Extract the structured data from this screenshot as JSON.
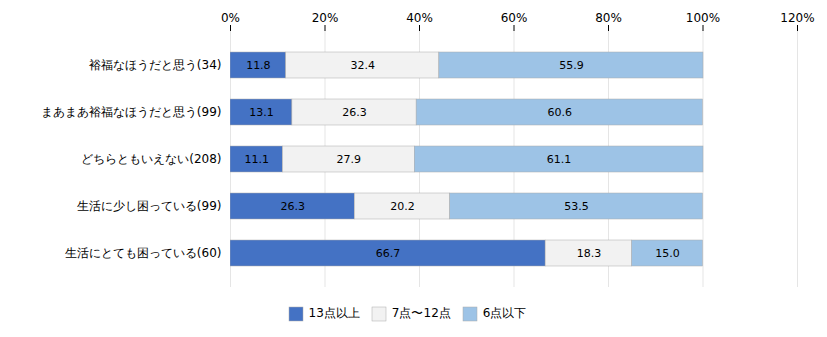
{
  "chart_data": {
    "type": "bar",
    "orientation": "horizontal",
    "stacked": true,
    "categories": [
      "裕福なほうだと思う(34)",
      "まあまあ裕福なほうだと思う(99)",
      "どちらともいえない(208)",
      "生活に少し困っている(99)",
      "生活にとても困っている(60)"
    ],
    "series": [
      {
        "name": "13点以上",
        "color": "#4472C4",
        "values": [
          11.8,
          13.1,
          11.1,
          26.3,
          66.7
        ]
      },
      {
        "name": "7点〜12点",
        "color": "#f2f2f2",
        "values": [
          32.4,
          26.3,
          27.9,
          20.2,
          18.3
        ]
      },
      {
        "name": "6点以下",
        "color": "#9DC3E6",
        "values": [
          55.9,
          60.6,
          61.1,
          53.5,
          15.0
        ],
        "value_labels": [
          "55.9",
          "60.6",
          "61.1",
          "53.5",
          "15.0"
        ]
      }
    ],
    "xlim": [
      0,
      120
    ],
    "xticks": [
      {
        "value": 0,
        "label": "0%"
      },
      {
        "value": 20,
        "label": "20%"
      },
      {
        "value": 40,
        "label": "40%"
      },
      {
        "value": 60,
        "label": "60%"
      },
      {
        "value": 80,
        "label": "80%"
      },
      {
        "value": 100,
        "label": "100%"
      },
      {
        "value": 120,
        "label": "120%"
      }
    ],
    "grid": true,
    "legend": "bottom",
    "data_labels": true
  }
}
